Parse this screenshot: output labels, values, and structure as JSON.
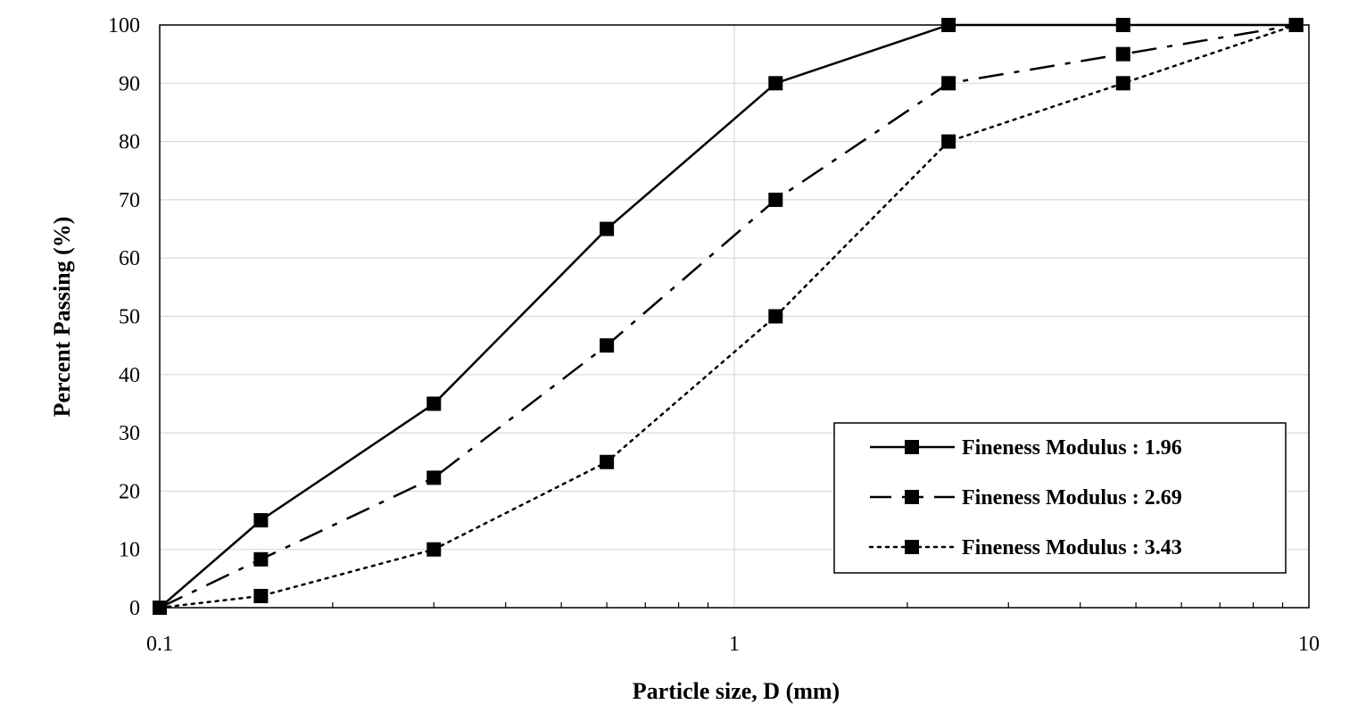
{
  "chart_data": {
    "type": "line",
    "title": "",
    "xlabel": "Particle size, D (mm)",
    "ylabel": "Percent Passing (%)",
    "xscale": "log",
    "xlim": [
      0.1,
      10
    ],
    "ylim": [
      0,
      100
    ],
    "xticks": [
      0.1,
      1,
      10
    ],
    "xtick_labels": [
      "0.1",
      "1",
      "10"
    ],
    "yticks": [
      0,
      10,
      20,
      30,
      40,
      50,
      60,
      70,
      80,
      90,
      100
    ],
    "ytick_labels": [
      "0",
      "10",
      "20",
      "30",
      "40",
      "50",
      "60",
      "70",
      "80",
      "90",
      "100"
    ],
    "grid": true,
    "legend_position": "bottom-right",
    "marker": "square",
    "series": [
      {
        "name": "Fineness Modulus : 1.96",
        "style": "solid",
        "x": [
          0.1,
          0.15,
          0.3,
          0.6,
          1.18,
          2.36,
          4.75,
          9.5
        ],
        "y": [
          0,
          15,
          35,
          65,
          90,
          100,
          100,
          100
        ]
      },
      {
        "name": "Fineness Modulus : 2.69",
        "style": "dashdot",
        "x": [
          0.1,
          0.15,
          0.3,
          0.6,
          1.18,
          2.36,
          4.75,
          9.5
        ],
        "y": [
          0,
          8.3,
          22.3,
          45,
          70,
          90,
          95,
          100
        ]
      },
      {
        "name": "Fineness Modulus : 3.43",
        "style": "dotted",
        "x": [
          0.1,
          0.15,
          0.3,
          0.6,
          1.18,
          2.36,
          4.75,
          9.5
        ],
        "y": [
          0,
          2,
          10,
          25,
          50,
          80,
          90,
          100
        ]
      }
    ]
  }
}
